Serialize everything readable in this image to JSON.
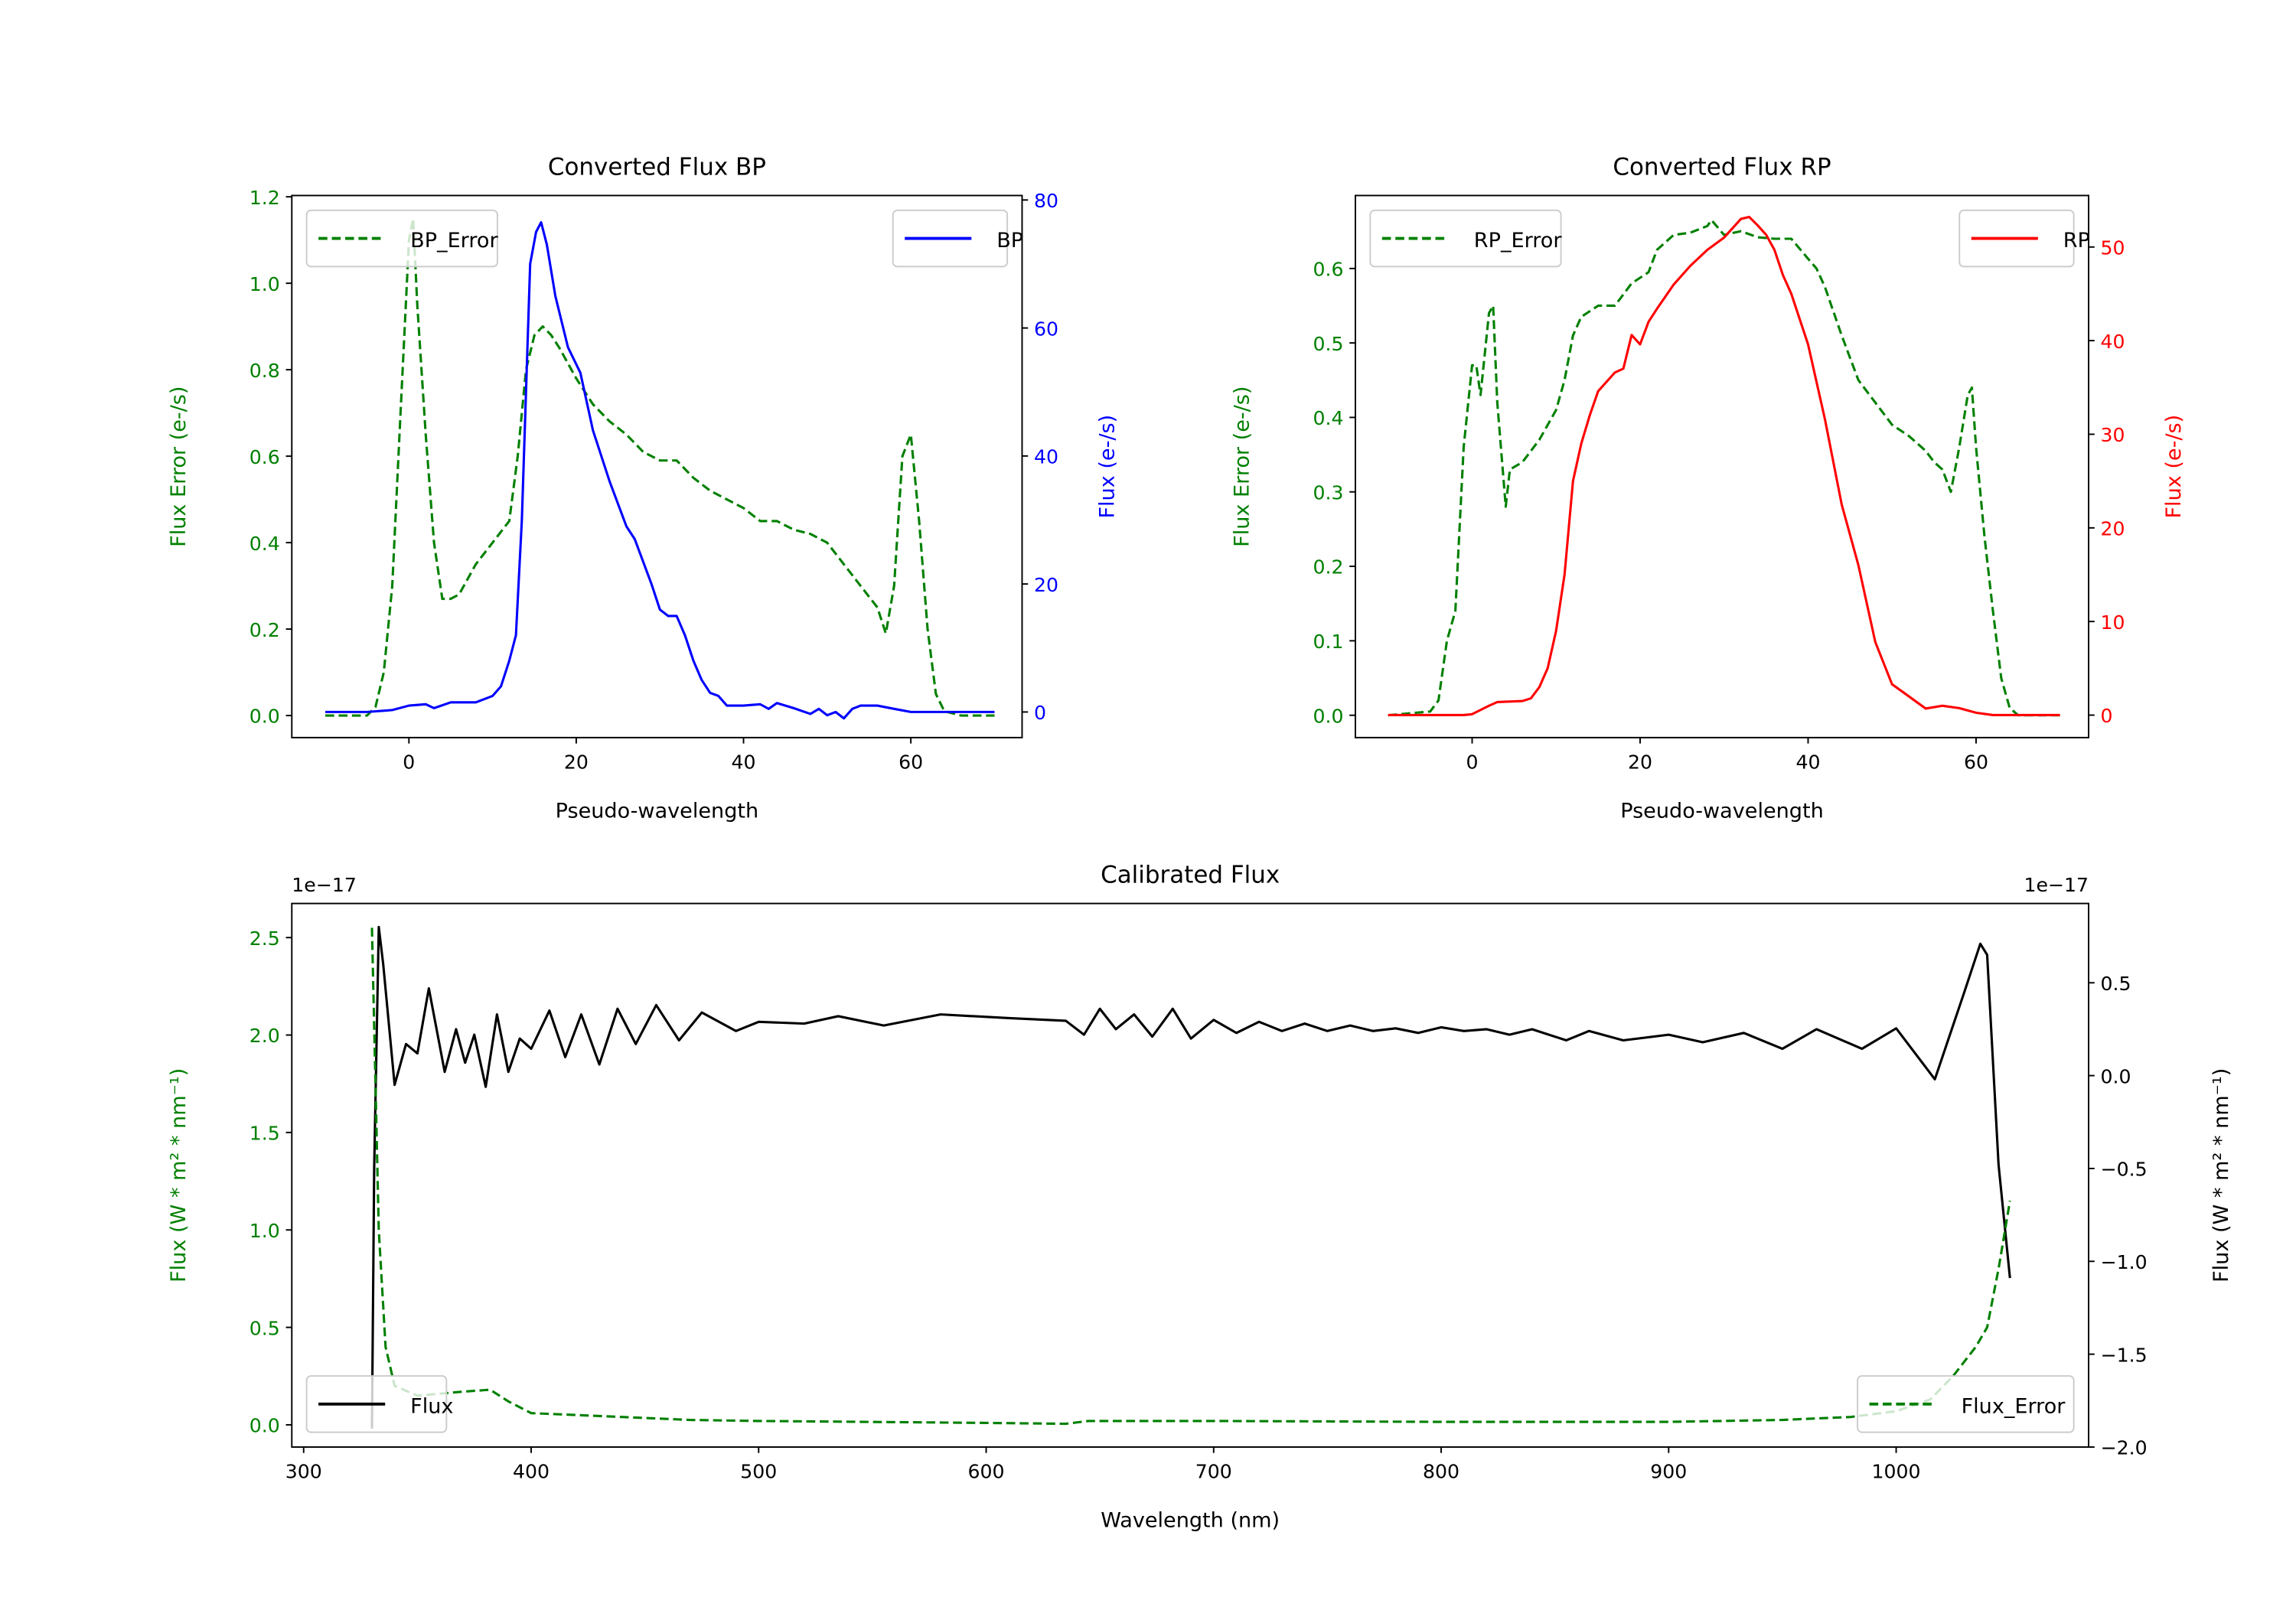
{
  "chart_data": [
    {
      "type": "line",
      "title": "Converted Flux BP",
      "xlabel": "Pseudo-wavelength",
      "xlim": [
        -14,
        73.3
      ],
      "xticks": [
        "0",
        "20",
        "40",
        "60"
      ],
      "xtick_values": [
        0,
        20,
        40,
        60
      ],
      "left_axis": {
        "label": "Flux Error (e-/s)",
        "color": "#008000",
        "ylim": [
          -0.051,
          1.203
        ],
        "ticks": [
          "0.0",
          "0.2",
          "0.4",
          "0.6",
          "0.8",
          "1.0",
          "1.2"
        ],
        "tick_values": [
          0,
          0.2,
          0.4,
          0.6,
          0.8,
          1.0,
          1.2
        ]
      },
      "right_axis": {
        "label": "Flux (e-/s)",
        "color": "#0000ff",
        "ylim": [
          -4.0,
          80.7
        ],
        "ticks": [
          "0",
          "20",
          "40",
          "60",
          "80"
        ],
        "tick_values": [
          0,
          20,
          40,
          60,
          80
        ]
      },
      "series": [
        {
          "name": "BP_Error",
          "axis": "left",
          "style": "dashed",
          "color": "#008000",
          "x": [
            -10,
            -5,
            -4,
            -3,
            -2,
            -1,
            0,
            0.5,
            1,
            2,
            3,
            4,
            5,
            6,
            8,
            10,
            12,
            13,
            14,
            15,
            16,
            17,
            18,
            20,
            22,
            24,
            26,
            28,
            30,
            32,
            34,
            36,
            38,
            40,
            42,
            44,
            46,
            48,
            50,
            52,
            54,
            56,
            57,
            58,
            59,
            60,
            61,
            62,
            63,
            64,
            66,
            70
          ],
          "y": [
            0,
            0,
            0.02,
            0.1,
            0.3,
            0.7,
            1.1,
            1.15,
            0.95,
            0.65,
            0.4,
            0.27,
            0.27,
            0.28,
            0.35,
            0.4,
            0.45,
            0.6,
            0.8,
            0.88,
            0.9,
            0.88,
            0.85,
            0.78,
            0.72,
            0.68,
            0.65,
            0.61,
            0.59,
            0.59,
            0.55,
            0.52,
            0.5,
            0.48,
            0.45,
            0.45,
            0.43,
            0.42,
            0.4,
            0.35,
            0.3,
            0.25,
            0.19,
            0.3,
            0.6,
            0.65,
            0.45,
            0.2,
            0.05,
            0.01,
            0,
            0
          ]
        },
        {
          "name": "BP",
          "axis": "right",
          "style": "solid",
          "color": "#0000ff",
          "x": [
            -10,
            -5,
            -2,
            0,
            2,
            3,
            5,
            8,
            10,
            11,
            12,
            12.8,
            13.5,
            14,
            14.5,
            15.2,
            15.8,
            16.5,
            17.5,
            19,
            20.5,
            22,
            24,
            26,
            27,
            29,
            30,
            31,
            32,
            33,
            34,
            35,
            36,
            37,
            38,
            40,
            42,
            43,
            44,
            46,
            48,
            49,
            50,
            51,
            52,
            53,
            54,
            56,
            58,
            60,
            70
          ],
          "y": [
            0,
            0,
            0.3,
            1,
            1.2,
            0.6,
            1.5,
            1.5,
            2.5,
            4,
            8,
            12,
            30,
            50,
            70,
            75,
            76.5,
            73,
            65,
            57,
            53,
            44,
            36,
            29,
            27,
            20,
            16,
            15,
            15,
            12,
            8,
            5,
            3,
            2.5,
            1,
            1,
            1.2,
            0.5,
            1.4,
            0.6,
            -0.3,
            0.5,
            -0.5,
            0,
            -1,
            0.5,
            1,
            1,
            0.5,
            0,
            0
          ]
        }
      ],
      "legends": [
        {
          "series": 0,
          "loc": "upper left"
        },
        {
          "series": 1,
          "loc": "upper right"
        }
      ]
    },
    {
      "type": "line",
      "title": "Converted Flux RP",
      "xlabel": "Pseudo-wavelength",
      "xlim": [
        -13.9,
        73.4
      ],
      "xticks": [
        "0",
        "20",
        "40",
        "60"
      ],
      "xtick_values": [
        0,
        20,
        40,
        60
      ],
      "left_axis": {
        "label": "Flux Error (e-/s)",
        "color": "#008000",
        "ylim": [
          -0.03,
          0.698
        ],
        "ticks": [
          "0.0",
          "0.1",
          "0.2",
          "0.3",
          "0.4",
          "0.5",
          "0.6"
        ],
        "tick_values": [
          0,
          0.1,
          0.2,
          0.3,
          0.4,
          0.5,
          0.6
        ]
      },
      "right_axis": {
        "label": "Flux (e-/s)",
        "color": "#ff0000",
        "ylim": [
          -2.4,
          55.5
        ],
        "ticks": [
          "0",
          "10",
          "20",
          "30",
          "40",
          "50"
        ],
        "tick_values": [
          0,
          10,
          20,
          30,
          40,
          50
        ]
      },
      "series": [
        {
          "name": "RP_Error",
          "axis": "left",
          "style": "dashed",
          "color": "#008000",
          "x": [
            -10,
            -5,
            -4,
            -3,
            -2,
            -1,
            0,
            0.5,
            1,
            2,
            2.5,
            3,
            4,
            4.5,
            6,
            8,
            10,
            11,
            12,
            13,
            15,
            17,
            19,
            21,
            22,
            24,
            26,
            28,
            28.5,
            30,
            32,
            34,
            36,
            38,
            40,
            41,
            42,
            44,
            46,
            48,
            50,
            52,
            54,
            55,
            56,
            57,
            58,
            59,
            59.5,
            60,
            61,
            62,
            63,
            64,
            65,
            70
          ],
          "y": [
            0,
            0.005,
            0.02,
            0.1,
            0.14,
            0.36,
            0.47,
            0.47,
            0.43,
            0.54,
            0.55,
            0.42,
            0.28,
            0.33,
            0.34,
            0.37,
            0.41,
            0.45,
            0.51,
            0.535,
            0.55,
            0.55,
            0.58,
            0.595,
            0.625,
            0.645,
            0.648,
            0.657,
            0.665,
            0.645,
            0.65,
            0.642,
            0.64,
            0.64,
            0.613,
            0.6,
            0.575,
            0.51,
            0.45,
            0.42,
            0.39,
            0.375,
            0.355,
            0.34,
            0.33,
            0.3,
            0.36,
            0.43,
            0.44,
            0.36,
            0.24,
            0.14,
            0.05,
            0.01,
            0,
            0
          ]
        },
        {
          "name": "RP",
          "axis": "right",
          "style": "solid",
          "color": "#ff0000",
          "x": [
            -10,
            -1,
            0,
            2,
            3,
            6,
            7,
            8,
            9,
            10,
            11,
            12,
            13,
            14,
            15,
            17,
            18,
            19,
            20,
            21,
            22,
            24,
            26,
            28,
            30,
            32,
            33,
            34,
            35,
            36,
            37,
            38,
            40,
            42,
            44,
            46,
            48,
            50,
            52,
            54,
            56,
            58,
            60,
            62,
            70
          ],
          "y": [
            0,
            0,
            0.1,
            1,
            1.4,
            1.5,
            1.8,
            3,
            5,
            9,
            15,
            25,
            29,
            32,
            34.6,
            36.6,
            37,
            40.6,
            39.6,
            42,
            43.4,
            46,
            48,
            49.7,
            51,
            53,
            53.2,
            52.3,
            51.3,
            49.7,
            47,
            45,
            39.6,
            31.6,
            22.5,
            16,
            7.8,
            3.3,
            2,
            0.7,
            1,
            0.75,
            0.25,
            0,
            0
          ]
        }
      ],
      "legends": [
        {
          "series": 0,
          "loc": "upper left"
        },
        {
          "series": 1,
          "loc": "upper right"
        }
      ]
    },
    {
      "type": "line",
      "title": "Calibrated Flux",
      "xlabel": "Wavelength (nm)",
      "xlim": [
        294.8,
        1084.6
      ],
      "xticks": [
        "300",
        "400",
        "500",
        "600",
        "700",
        "800",
        "900",
        "1000"
      ],
      "xtick_values": [
        300,
        400,
        500,
        600,
        700,
        800,
        900,
        1000
      ],
      "left_axis": {
        "label": "Flux (W * m² * nm⁻¹)",
        "color": "#008000",
        "ylim": [
          -0.114,
          2.675
        ],
        "offset_text": "1e−17",
        "ticks": [
          "0.0",
          "0.5",
          "1.0",
          "1.5",
          "2.0",
          "2.5"
        ],
        "tick_values": [
          0,
          0.5,
          1.0,
          1.5,
          2.0,
          2.5
        ]
      },
      "right_axis": {
        "label": "Flux (W * m² * nm⁻¹)",
        "color": "#000000",
        "ylim": [
          -2.0,
          0.927
        ],
        "offset_text": "1e−17",
        "ticks": [
          "−2.0",
          "−1.5",
          "−1.0",
          "−0.5",
          "0.0",
          "0.5"
        ],
        "tick_values": [
          -2.0,
          -1.5,
          -1.0,
          -0.5,
          0.0,
          0.5
        ]
      },
      "series": [
        {
          "name": "Flux",
          "axis": "right",
          "style": "solid",
          "color": "#000000",
          "x": [
            330,
            331,
            333,
            335,
            340,
            345,
            350,
            355,
            362,
            367,
            371,
            375,
            380,
            385,
            390,
            395,
            400,
            408,
            415,
            422,
            430,
            438,
            446,
            455,
            465,
            475,
            490,
            500,
            520,
            535,
            555,
            580,
            610,
            635,
            643,
            650,
            657,
            665,
            673,
            682,
            690,
            700,
            710,
            720,
            730,
            740,
            750,
            760,
            770,
            780,
            790,
            800,
            810,
            820,
            830,
            840,
            855,
            865,
            880,
            900,
            915,
            933,
            950,
            965,
            985,
            1000,
            1017,
            1030,
            1037,
            1040,
            1045,
            1050
          ],
          "y": [
            -1.9,
            -0.5,
            0.8,
            0.6,
            -0.05,
            0.17,
            0.12,
            0.47,
            0.02,
            0.25,
            0.07,
            0.22,
            -0.06,
            0.33,
            0.02,
            0.2,
            0.145,
            0.35,
            0.1,
            0.33,
            0.06,
            0.36,
            0.17,
            0.38,
            0.19,
            0.34,
            0.24,
            0.29,
            0.28,
            0.32,
            0.27,
            0.33,
            0.31,
            0.295,
            0.22,
            0.36,
            0.25,
            0.33,
            0.21,
            0.36,
            0.2,
            0.3,
            0.23,
            0.29,
            0.24,
            0.28,
            0.24,
            0.27,
            0.24,
            0.255,
            0.23,
            0.26,
            0.24,
            0.25,
            0.22,
            0.25,
            0.19,
            0.24,
            0.19,
            0.22,
            0.18,
            0.23,
            0.145,
            0.25,
            0.145,
            0.255,
            -0.02,
            0.45,
            0.71,
            0.65,
            -0.48,
            -1.09
          ]
        },
        {
          "name": "Flux_Error",
          "axis": "left",
          "style": "dashed",
          "color": "#008000",
          "x": [
            330,
            333,
            336,
            340,
            350,
            370,
            382,
            390,
            400,
            420,
            440,
            470,
            500,
            600,
            635,
            645,
            700,
            800,
            900,
            950,
            980,
            1000,
            1015,
            1025,
            1035,
            1040,
            1045,
            1050
          ],
          "y": [
            2.55,
            1.0,
            0.4,
            0.2,
            0.15,
            0.17,
            0.18,
            0.12,
            0.06,
            0.05,
            0.04,
            0.025,
            0.02,
            0.01,
            0.005,
            0.02,
            0.02,
            0.015,
            0.015,
            0.025,
            0.04,
            0.07,
            0.13,
            0.25,
            0.4,
            0.5,
            0.8,
            1.15
          ]
        }
      ],
      "legends": [
        {
          "series": 0,
          "loc": "lower left"
        },
        {
          "series": 1,
          "loc": "lower right"
        }
      ]
    }
  ]
}
